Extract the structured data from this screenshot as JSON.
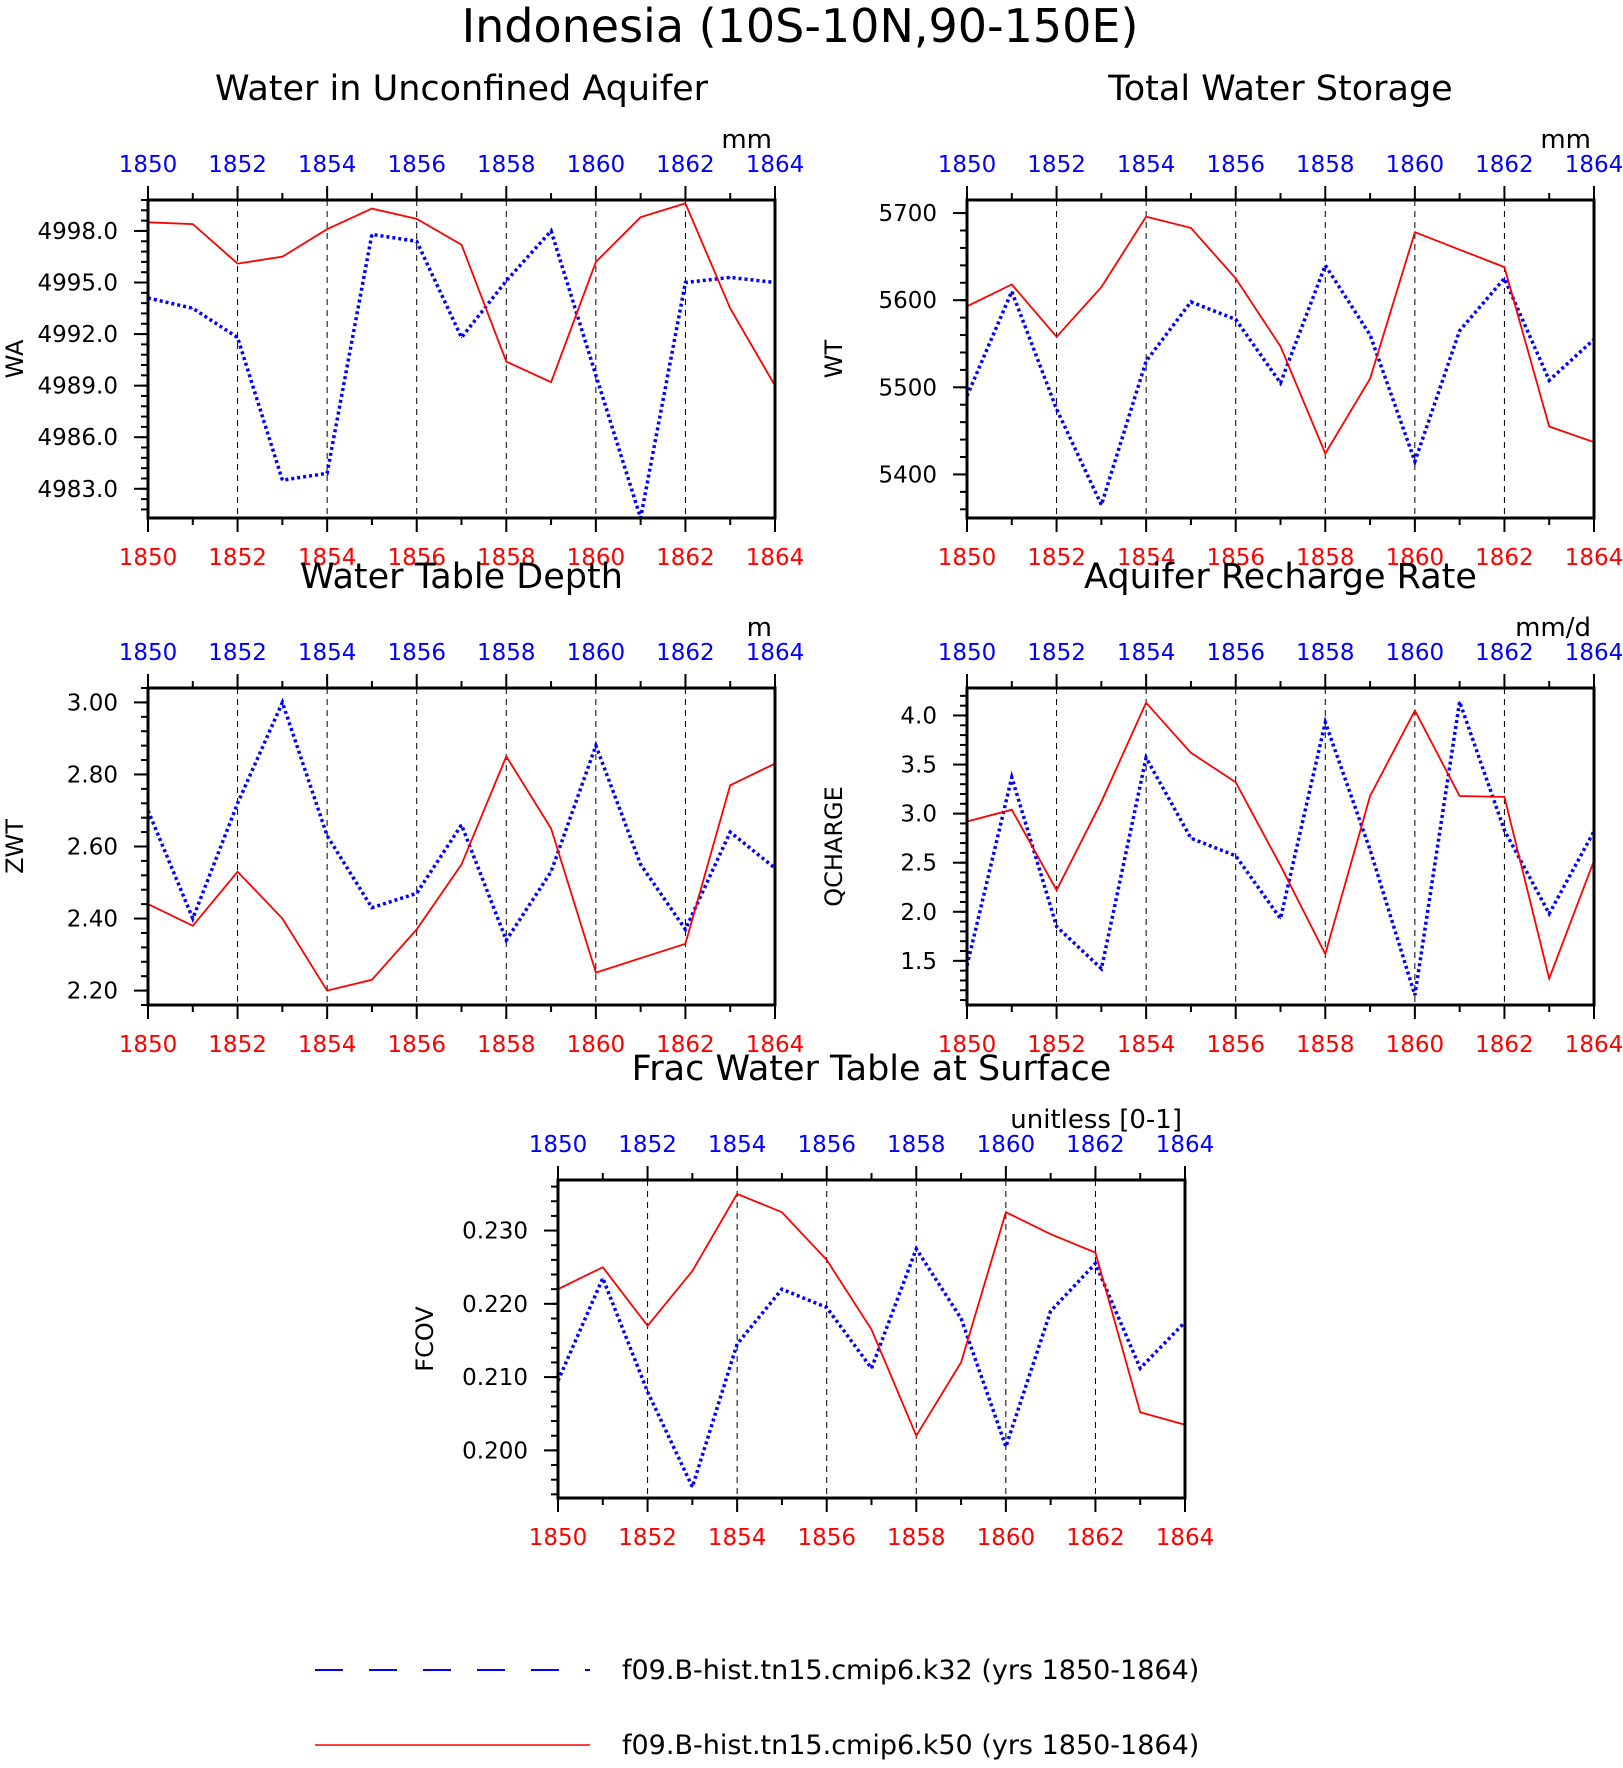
{
  "figure_title": "Indonesia (10S-10N,90-150E)",
  "colors": {
    "k32": "#0000ff",
    "k50": "#ff0000",
    "axis": "#000000",
    "grid": "#000000"
  },
  "legend": [
    {
      "label": "f09.B-hist.tn15.cmip6.k32 (yrs 1850-1864)",
      "color": "#0000ff",
      "style": "dashed"
    },
    {
      "label": "f09.B-hist.tn15.cmip6.k50 (yrs 1850-1864)",
      "color": "#ff0000",
      "style": "solid"
    }
  ],
  "chart_data": [
    {
      "type": "line",
      "title": "Water in Unconfined Aquifer",
      "units": "mm",
      "ylabel": "WA",
      "xlabel": "",
      "x": [
        1850,
        1851,
        1852,
        1853,
        1854,
        1855,
        1856,
        1857,
        1858,
        1859,
        1860,
        1861,
        1862,
        1863,
        1864
      ],
      "xticks": [
        "1850",
        "1852",
        "1854",
        "1856",
        "1858",
        "1860",
        "1862",
        "1864"
      ],
      "xlim": [
        1850,
        1864
      ],
      "ylim": [
        4981.3,
        4999.8
      ],
      "yticks": [
        "4983.0",
        "4986.0",
        "4989.0",
        "4992.0",
        "4995.0",
        "4998.0"
      ],
      "vgrid": [
        1852,
        1854,
        1856,
        1858,
        1860,
        1862
      ],
      "series": [
        {
          "name": "f09.B-hist.tn15.cmip6.k32",
          "style": "dashed",
          "color": "#0000ff",
          "values": [
            4994.1,
            4993.5,
            4991.8,
            4983.5,
            4983.9,
            4997.8,
            4997.4,
            4991.8,
            4995.1,
            4998.0,
            4989.6,
            4981.3,
            4995.0,
            4995.3,
            4995.0
          ]
        },
        {
          "name": "f09.B-hist.tn15.cmip6.k50",
          "style": "solid",
          "color": "#ff0000",
          "values": [
            4998.5,
            4998.4,
            4996.1,
            4996.5,
            4998.1,
            4999.3,
            4998.7,
            4997.2,
            4990.4,
            4989.2,
            4996.2,
            4998.8,
            4999.6,
            4993.5,
            4989.0
          ]
        }
      ]
    },
    {
      "type": "line",
      "title": "Total Water Storage",
      "units": "mm",
      "ylabel": "WT",
      "xlabel": "",
      "x": [
        1850,
        1851,
        1852,
        1853,
        1854,
        1855,
        1856,
        1857,
        1858,
        1859,
        1860,
        1861,
        1862,
        1863,
        1864
      ],
      "xticks": [
        "1850",
        "1852",
        "1854",
        "1856",
        "1858",
        "1860",
        "1862",
        "1864"
      ],
      "xlim": [
        1850,
        1864
      ],
      "ylim": [
        5350,
        5715
      ],
      "yticks": [
        "5400",
        "5500",
        "5600",
        "5700"
      ],
      "vgrid": [
        1852,
        1854,
        1856,
        1858,
        1860,
        1862
      ],
      "series": [
        {
          "name": "f09.B-hist.tn15.cmip6.k32",
          "style": "dashed",
          "color": "#0000ff",
          "values": [
            5490,
            5610,
            5475,
            5365,
            5530,
            5598,
            5578,
            5505,
            5640,
            5560,
            5415,
            5565,
            5625,
            5508,
            5555
          ]
        },
        {
          "name": "f09.B-hist.tn15.cmip6.k50",
          "style": "solid",
          "color": "#ff0000",
          "values": [
            5593,
            5618,
            5558,
            5615,
            5696,
            5683,
            5625,
            5547,
            5424,
            5510,
            5678,
            5658,
            5638,
            5455,
            5437
          ]
        }
      ]
    },
    {
      "type": "line",
      "title": "Water Table Depth",
      "units": "m",
      "ylabel": "ZWT",
      "xlabel": "",
      "x": [
        1850,
        1851,
        1852,
        1853,
        1854,
        1855,
        1856,
        1857,
        1858,
        1859,
        1860,
        1861,
        1862,
        1863,
        1864
      ],
      "xticks": [
        "1850",
        "1852",
        "1854",
        "1856",
        "1858",
        "1860",
        "1862",
        "1864"
      ],
      "xlim": [
        1850,
        1864
      ],
      "ylim": [
        2.16,
        3.04
      ],
      "yticks": [
        "2.20",
        "2.40",
        "2.60",
        "2.80",
        "3.00"
      ],
      "vgrid": [
        1852,
        1854,
        1856,
        1858,
        1860,
        1862
      ],
      "series": [
        {
          "name": "f09.B-hist.tn15.cmip6.k32",
          "style": "dashed",
          "color": "#0000ff",
          "values": [
            2.7,
            2.4,
            2.72,
            3.0,
            2.63,
            2.43,
            2.47,
            2.66,
            2.34,
            2.53,
            2.88,
            2.55,
            2.37,
            2.64,
            2.54
          ]
        },
        {
          "name": "f09.B-hist.tn15.cmip6.k50",
          "style": "solid",
          "color": "#ff0000",
          "values": [
            2.44,
            2.38,
            2.53,
            2.4,
            2.2,
            2.23,
            2.37,
            2.55,
            2.85,
            2.65,
            2.25,
            2.29,
            2.33,
            2.77,
            2.83
          ]
        }
      ]
    },
    {
      "type": "line",
      "title": "Aquifer Recharge Rate",
      "units": "mm/d",
      "ylabel": "QCHARGE",
      "xlabel": "",
      "x": [
        1850,
        1851,
        1852,
        1853,
        1854,
        1855,
        1856,
        1857,
        1858,
        1859,
        1860,
        1861,
        1862,
        1863,
        1864
      ],
      "xticks": [
        "1850",
        "1852",
        "1854",
        "1856",
        "1858",
        "1860",
        "1862",
        "1864"
      ],
      "xlim": [
        1850,
        1864
      ],
      "ylim": [
        1.05,
        4.28
      ],
      "yticks": [
        "1.5",
        "2.0",
        "2.5",
        "3.0",
        "3.5",
        "4.0"
      ],
      "vgrid": [
        1852,
        1854,
        1856,
        1858,
        1860,
        1862
      ],
      "series": [
        {
          "name": "f09.B-hist.tn15.cmip6.k32",
          "style": "dashed",
          "color": "#0000ff",
          "values": [
            1.45,
            3.37,
            1.85,
            1.42,
            3.57,
            2.75,
            2.57,
            1.93,
            3.93,
            2.63,
            1.15,
            4.14,
            2.83,
            1.98,
            2.82
          ]
        },
        {
          "name": "f09.B-hist.tn15.cmip6.k50",
          "style": "solid",
          "color": "#ff0000",
          "values": [
            2.92,
            3.04,
            2.22,
            3.12,
            4.13,
            3.62,
            3.32,
            2.47,
            1.57,
            3.18,
            4.05,
            3.18,
            3.17,
            1.32,
            2.52
          ]
        }
      ]
    },
    {
      "type": "line",
      "title": "Frac Water Table at Surface",
      "units": "unitless [0-1]",
      "ylabel": "FCOV",
      "xlabel": "",
      "x": [
        1850,
        1851,
        1852,
        1853,
        1854,
        1855,
        1856,
        1857,
        1858,
        1859,
        1860,
        1861,
        1862,
        1863,
        1864
      ],
      "xticks": [
        "1850",
        "1852",
        "1854",
        "1856",
        "1858",
        "1860",
        "1862",
        "1864"
      ],
      "xlim": [
        1850,
        1864
      ],
      "ylim": [
        0.1935,
        0.2369
      ],
      "yticks": [
        "0.200",
        "0.210",
        "0.220",
        "0.230"
      ],
      "vgrid": [
        1852,
        1854,
        1856,
        1858,
        1860,
        1862
      ],
      "series": [
        {
          "name": "f09.B-hist.tn15.cmip6.k32",
          "style": "dashed",
          "color": "#0000ff",
          "values": [
            0.2095,
            0.2235,
            0.208,
            0.195,
            0.2145,
            0.222,
            0.2195,
            0.2112,
            0.2275,
            0.218,
            0.2005,
            0.219,
            0.2255,
            0.2112,
            0.2175
          ]
        },
        {
          "name": "f09.B-hist.tn15.cmip6.k50",
          "style": "solid",
          "color": "#ff0000",
          "values": [
            0.222,
            0.225,
            0.217,
            0.2245,
            0.235,
            0.2325,
            0.226,
            0.2165,
            0.202,
            0.212,
            0.2325,
            0.2295,
            0.227,
            0.2052,
            0.2035
          ]
        }
      ]
    }
  ]
}
